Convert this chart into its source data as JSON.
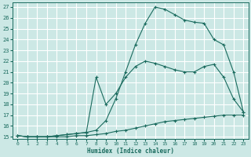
{
  "xlabel": "Humidex (Indice chaleur)",
  "xlim": [
    -0.5,
    23.5
  ],
  "ylim": [
    14.8,
    27.4
  ],
  "yticks": [
    15,
    16,
    17,
    18,
    19,
    20,
    21,
    22,
    23,
    24,
    25,
    26,
    27
  ],
  "xticks": [
    0,
    1,
    2,
    3,
    4,
    5,
    6,
    7,
    8,
    9,
    10,
    11,
    12,
    13,
    14,
    15,
    16,
    17,
    18,
    19,
    20,
    21,
    22,
    23
  ],
  "bg_color": "#cce8e5",
  "grid_color": "#ffffff",
  "line_color": "#1a6b5e",
  "line1_x": [
    0,
    1,
    2,
    3,
    4,
    5,
    6,
    7,
    8,
    9,
    10,
    11,
    12,
    13,
    14,
    15,
    16,
    17,
    18,
    19,
    20,
    21,
    22,
    23
  ],
  "line1_y": [
    15.1,
    15.0,
    15.0,
    15.0,
    15.0,
    15.0,
    15.1,
    15.1,
    15.2,
    15.3,
    15.5,
    15.6,
    15.8,
    16.0,
    16.2,
    16.4,
    16.5,
    16.6,
    16.7,
    16.8,
    16.9,
    17.0,
    17.0,
    17.0
  ],
  "line2_x": [
    0,
    1,
    2,
    3,
    4,
    5,
    6,
    7,
    8,
    9,
    10,
    11,
    12,
    13,
    14,
    15,
    16,
    17,
    18,
    19,
    20,
    21,
    22,
    23
  ],
  "line2_y": [
    15.1,
    15.0,
    15.0,
    15.0,
    15.1,
    15.2,
    15.3,
    15.4,
    20.5,
    18.0,
    19.0,
    20.5,
    21.5,
    22.0,
    21.8,
    21.5,
    21.2,
    21.0,
    21.0,
    21.5,
    21.7,
    20.5,
    18.5,
    17.3
  ],
  "line3_x": [
    0,
    1,
    2,
    3,
    4,
    5,
    6,
    7,
    8,
    9,
    10,
    11,
    12,
    13,
    14,
    15,
    16,
    17,
    18,
    19,
    20,
    21,
    22,
    23
  ],
  "line3_y": [
    15.1,
    15.0,
    15.0,
    15.0,
    15.1,
    15.2,
    15.3,
    15.4,
    15.6,
    16.5,
    18.5,
    21.0,
    23.5,
    25.5,
    27.0,
    26.8,
    26.3,
    25.8,
    25.6,
    25.5,
    24.0,
    23.5,
    21.0,
    17.3
  ]
}
